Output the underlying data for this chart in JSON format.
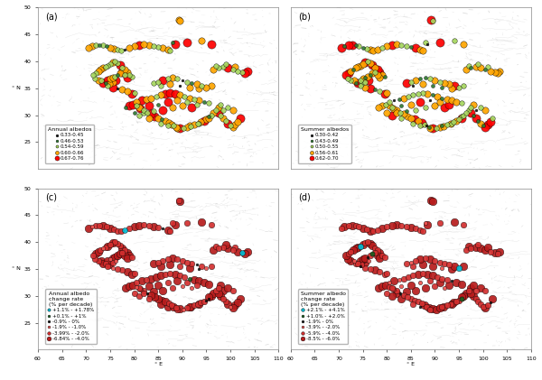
{
  "panels": [
    "(a)",
    "(b)",
    "(c)",
    "(d)"
  ],
  "map_extent": [
    60,
    110,
    20,
    50
  ],
  "xlabel": "° E",
  "xticks": [
    60,
    65,
    70,
    75,
    80,
    85,
    90,
    95,
    100,
    105,
    110
  ],
  "yticks": [
    25,
    30,
    35,
    40,
    45,
    50
  ],
  "panel_a": {
    "title": "Annual albedos",
    "legend_labels": [
      "0.33-0.45",
      "0.46-0.53",
      "0.54-0.59",
      "0.60-0.66",
      "0.67-0.76"
    ],
    "colors": [
      "#111111",
      "#2e7d32",
      "#a5d65e",
      "#FFA500",
      "#FF0000"
    ],
    "sizes": [
      4,
      8,
      16,
      28,
      44
    ]
  },
  "panel_b": {
    "title": "Summer albedos",
    "legend_labels": [
      "0.30-0.42",
      "0.43-0.49",
      "0.50-0.55",
      "0.56-0.61",
      "0.62-0.70"
    ],
    "colors": [
      "#111111",
      "#2e7d32",
      "#a5d65e",
      "#FFA500",
      "#FF0000"
    ],
    "sizes": [
      4,
      8,
      16,
      28,
      44
    ]
  },
  "panel_c": {
    "title": "Annual albedo\nchange rate\n(% per decade)",
    "legend_labels": [
      "+1.1% - +1.78%",
      "+0.1% - +1%",
      "-0.9% - 0%",
      "-1.9% - -1.0%",
      "-3.99% - -2.0%",
      "-6.84% - -4.0%"
    ],
    "colors": [
      "#00BCD4",
      "#1B5E20",
      "#111111",
      "#EF5350",
      "#D32F2F",
      "#B71C1C"
    ],
    "sizes": [
      18,
      10,
      4,
      10,
      22,
      38
    ]
  },
  "panel_d": {
    "title": "Summer albedo\nchange rate\n(% per decade)",
    "legend_labels": [
      "+2.1% - +4.1%",
      "+1.0% - +2.0%",
      "-1.9% - 0%",
      "-3.9% - -2.0%",
      "-5.9% - -4.0%",
      "-8.5% - -6.0%"
    ],
    "colors": [
      "#00BCD4",
      "#1B5E20",
      "#111111",
      "#EF5350",
      "#D32F2F",
      "#B71C1C"
    ],
    "sizes": [
      22,
      14,
      4,
      10,
      22,
      38
    ]
  },
  "bg_color": "#ffffff",
  "terrain_color": "#c8c8c8"
}
